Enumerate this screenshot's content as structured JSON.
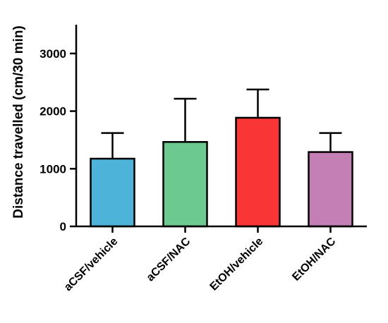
{
  "chart_data": {
    "type": "bar",
    "title": "",
    "xlabel": "",
    "ylabel": "Distance travelled (cm/30 min)",
    "ylim": [
      0,
      3500
    ],
    "yticks": [
      0,
      1000,
      2000,
      3000
    ],
    "grid": false,
    "categories": [
      "aCSF/vehicle",
      "aCSF/NAC",
      "EtOH/vehicle",
      "EtOH/NAC"
    ],
    "values": [
      1175,
      1465,
      1885,
      1290
    ],
    "error_upper": [
      1620,
      2215,
      2375,
      1620
    ],
    "colors": [
      "#4db3d9",
      "#6cc990",
      "#f93535",
      "#c47fb4"
    ]
  }
}
